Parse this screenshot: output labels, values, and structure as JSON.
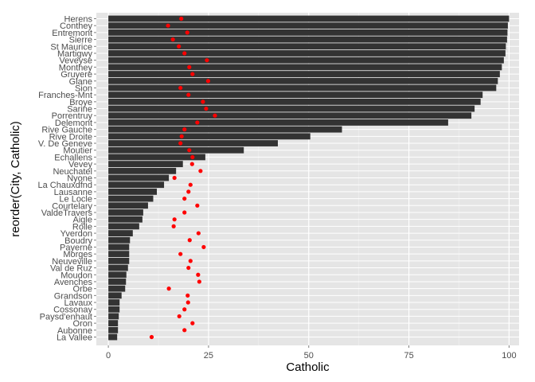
{
  "chart_data": {
    "type": "bar",
    "orientation": "horizontal",
    "xlabel": "Catholic",
    "ylabel": "reorder(City, Catholic)",
    "xlim": [
      -3,
      102.5
    ],
    "xticks": [
      0,
      25,
      50,
      75,
      100
    ],
    "grid": true,
    "legend": "none",
    "bar_color": "#333333",
    "point_color": "#ff0000",
    "panel_color": "#e5e5e5",
    "categories": [
      "Herens",
      "Conthey",
      "Entremont",
      "Sierre",
      "St Maurice",
      "Martigwy",
      "Veveyse",
      "Monthey",
      "Gruyere",
      "Glane",
      "Sion",
      "Franches-Mnt",
      "Broye",
      "Sarine",
      "Porrentruy",
      "Delemont",
      "Rive Gauche",
      "Rive Droite",
      "V. De Geneve",
      "Moutier",
      "Echallens",
      "Vevey",
      "Neuchatel",
      "Nyone",
      "La Chauxdfnd",
      "Lausanne",
      "Le Locle",
      "Courtelary",
      "ValdeTravers",
      "Aigle",
      "Rolle",
      "Yverdon",
      "Boudry",
      "Payerne",
      "Morges",
      "Neuveville",
      "Val de Ruz",
      "Moudon",
      "Avenches",
      "Orbe",
      "Grandson",
      "Lavaux",
      "Cossonay",
      "Paysd'enhaut",
      "Oron",
      "Aubonne",
      "La Vallee"
    ],
    "values": [
      100.0,
      99.7,
      99.6,
      99.5,
      99.2,
      99.1,
      98.7,
      98.2,
      97.7,
      97.2,
      96.8,
      93.4,
      92.9,
      91.4,
      90.6,
      84.8,
      58.3,
      50.4,
      42.3,
      33.8,
      24.2,
      18.6,
      16.9,
      15.1,
      13.9,
      12.1,
      11.2,
      9.9,
      8.7,
      8.5,
      7.7,
      6.1,
      5.4,
      5.2,
      5.2,
      5.2,
      4.9,
      4.5,
      4.4,
      4.2,
      3.3,
      2.8,
      2.8,
      2.6,
      2.4,
      2.4,
      2.2
    ],
    "points": [
      18.2,
      14.9,
      19.7,
      16.1,
      17.6,
      19.0,
      24.6,
      20.2,
      21.0,
      24.9,
      18.0,
      20.0,
      23.6,
      24.4,
      26.6,
      22.2,
      19.0,
      18.3,
      18.0,
      20.2,
      21.0,
      20.9,
      23.0,
      16.5,
      20.5,
      20.0,
      19.0,
      22.2,
      19.0,
      16.5,
      16.3,
      22.5,
      20.3,
      23.8,
      18.0,
      20.5,
      20.0,
      22.4,
      22.7,
      15.1,
      19.8,
      19.9,
      19.0,
      17.7,
      21.0,
      19.0,
      10.8
    ]
  }
}
